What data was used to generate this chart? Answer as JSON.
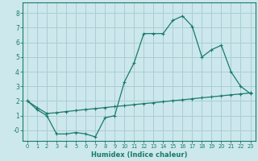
{
  "title": "",
  "xlabel": "Humidex (Indice chaleur)",
  "bg_color": "#cce8ec",
  "grid_color": "#aacdd4",
  "line_color": "#1a7a6a",
  "spine_color": "#1a7a6a",
  "xlim": [
    -0.5,
    23.5
  ],
  "ylim": [
    -0.7,
    8.7
  ],
  "xticks": [
    0,
    1,
    2,
    3,
    4,
    5,
    6,
    7,
    8,
    9,
    10,
    11,
    12,
    13,
    14,
    15,
    16,
    17,
    18,
    19,
    20,
    21,
    22,
    23
  ],
  "yticks": [
    0,
    1,
    2,
    3,
    4,
    5,
    6,
    7,
    8
  ],
  "ytick_labels": [
    "-0",
    "1",
    "2",
    "3",
    "4",
    "5",
    "6",
    "7",
    "8"
  ],
  "line1_x": [
    0,
    1,
    2,
    3,
    4,
    5,
    6,
    7,
    8,
    9,
    10,
    11,
    12,
    13,
    14,
    15,
    16,
    17,
    18,
    19,
    20,
    21,
    22,
    23
  ],
  "line1_y": [
    2.0,
    1.4,
    1.0,
    -0.25,
    -0.25,
    -0.15,
    -0.25,
    -0.45,
    0.85,
    1.0,
    3.3,
    4.6,
    6.6,
    6.6,
    6.6,
    7.5,
    7.8,
    7.1,
    5.0,
    5.5,
    5.8,
    4.0,
    3.0,
    2.5
  ],
  "line2_x": [
    0,
    1,
    2,
    3,
    4,
    5,
    6,
    7,
    8,
    9,
    10,
    11,
    12,
    13,
    14,
    15,
    16,
    17,
    18,
    19,
    20,
    21,
    22,
    23
  ],
  "line2_y": [
    2.0,
    1.55,
    1.15,
    1.2,
    1.28,
    1.35,
    1.42,
    1.48,
    1.55,
    1.62,
    1.68,
    1.75,
    1.82,
    1.88,
    1.95,
    2.02,
    2.08,
    2.15,
    2.22,
    2.28,
    2.35,
    2.42,
    2.48,
    2.55
  ]
}
